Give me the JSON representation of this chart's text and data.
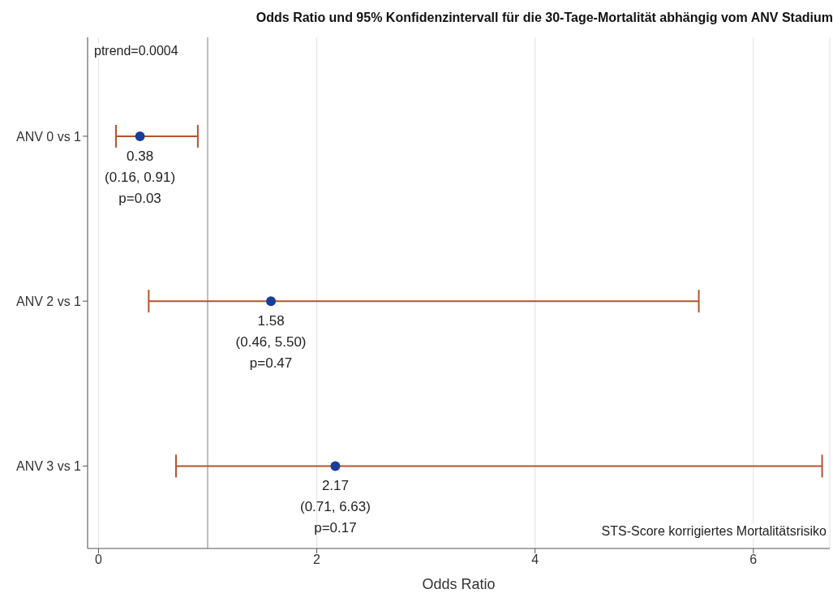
{
  "chart_data": {
    "type": "scatter",
    "orientation": "horizontal",
    "title": "Odds Ratio und 95% Konfidenzintervall für die 30-Tage-Mortalität abhängig vom ANV Stadium",
    "xlabel": "Odds Ratio",
    "categories": [
      "ANV 0 vs 1",
      "ANV 2 vs 1",
      "ANV 3 vs 1"
    ],
    "series": [
      {
        "color": "#b5532d",
        "colors": [
          "#1a3d99",
          "#1a3d99",
          "#1a3d99"
        ],
        "values": [
          0.38,
          1.58,
          2.17
        ],
        "errors": [
          [
            0.16,
            0.91
          ],
          [
            0.46,
            5.5
          ],
          [
            0.71,
            6.63
          ]
        ],
        "value_labels": [
          "0.38\n(0.16, 0.91)\np=0.03",
          "1.58\n(0.46, 5.50)\np=0.47",
          "2.17\n(0.71, 6.63)\np=0.17"
        ]
      }
    ],
    "xlim": [
      -0.1,
      6.7
    ],
    "xticks": [
      0,
      2,
      4,
      6
    ],
    "grid": "x",
    "marker": "circle",
    "ref_lines": [
      {
        "axis": "x",
        "value": 1,
        "color": "#808080"
      }
    ],
    "annotations": [
      "ptrend=0.0004",
      "STS-Score korrigiertes Mortalitätsrisiko"
    ]
  }
}
